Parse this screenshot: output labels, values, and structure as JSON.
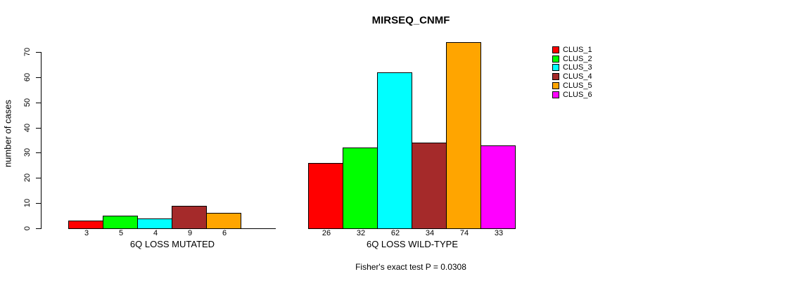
{
  "chart_data": {
    "type": "bar",
    "title": "MIRSEQ_CNMF",
    "ylabel": "number of cases",
    "ylim": [
      0,
      70
    ],
    "yticks": [
      0,
      10,
      20,
      30,
      40,
      50,
      60,
      70
    ],
    "grid": false,
    "legend_position": "right",
    "legend": [
      {
        "label": "CLUS_1",
        "color": "#FF0000"
      },
      {
        "label": "CLUS_2",
        "color": "#00FF00"
      },
      {
        "label": "CLUS_3",
        "color": "#00FFFF"
      },
      {
        "label": "CLUS_4",
        "color": "#A52A2A"
      },
      {
        "label": "CLUS_5",
        "color": "#FFA500"
      },
      {
        "label": "CLUS_6",
        "color": "#FF00FF"
      }
    ],
    "series_names": [
      "CLUS_1",
      "CLUS_2",
      "CLUS_3",
      "CLUS_4",
      "CLUS_5",
      "CLUS_6"
    ],
    "groups": [
      {
        "label": "6Q LOSS MUTATED",
        "values": [
          3,
          5,
          4,
          9,
          6,
          0
        ],
        "bar_labels": [
          "3",
          "5",
          "4",
          "9",
          "6",
          ""
        ]
      },
      {
        "label": "6Q LOSS WILD-TYPE",
        "values": [
          26,
          32,
          62,
          34,
          74,
          33
        ],
        "bar_labels": [
          "26",
          "32",
          "62",
          "34",
          "74",
          "33"
        ]
      }
    ],
    "footnote": "Fisher's exact test P = 0.0308"
  }
}
